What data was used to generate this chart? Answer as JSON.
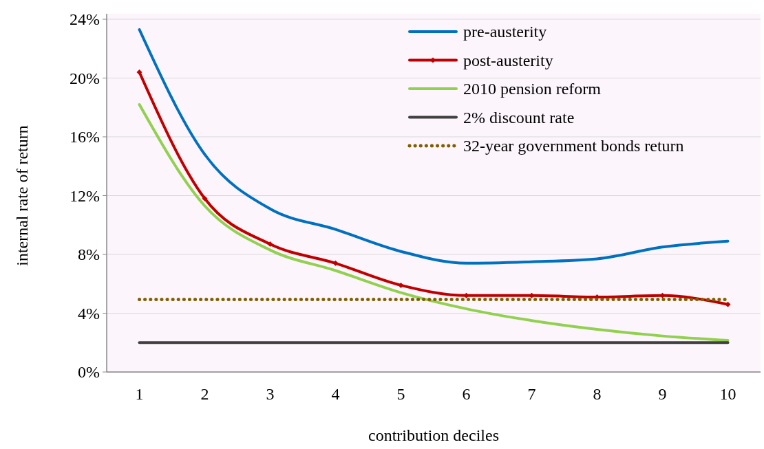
{
  "chart_data": {
    "type": "line",
    "xlabel": "contribution deciles",
    "ylabel": "internal rate of return",
    "categories": [
      "1",
      "2",
      "3",
      "4",
      "5",
      "6",
      "7",
      "8",
      "9",
      "10"
    ],
    "series": [
      {
        "name": "pre-austerity",
        "color": "#0070c0",
        "values": [
          23.3,
          14.8,
          11.1,
          9.7,
          8.2,
          7.4,
          7.5,
          7.7,
          8.5,
          8.9
        ]
      },
      {
        "name": "post-austerity",
        "color": "#c00000",
        "marker": "diamond",
        "values": [
          20.4,
          11.8,
          8.7,
          7.4,
          5.9,
          5.2,
          5.2,
          5.1,
          5.2,
          4.6
        ]
      },
      {
        "name": "2010 pension reform",
        "color": "#92d050",
        "values": [
          18.2,
          11.3,
          8.3,
          6.9,
          5.4,
          4.3,
          3.5,
          2.9,
          2.45,
          2.15
        ]
      },
      {
        "name": "2% discount rate",
        "color": "#404040",
        "values": [
          2,
          2,
          2,
          2,
          2,
          2,
          2,
          2,
          2,
          2
        ]
      },
      {
        "name": "32-year government bonds return",
        "color": "#7f6000",
        "line_style": "dotted",
        "values": [
          4.93,
          4.93,
          4.93,
          4.93,
          4.93,
          4.93,
          4.93,
          4.93,
          4.93,
          4.93
        ]
      }
    ],
    "ylim": [
      0,
      24
    ],
    "yticks": [
      {
        "value": 0,
        "label": "0%"
      },
      {
        "value": 4,
        "label": "4%"
      },
      {
        "value": 8,
        "label": "8%"
      },
      {
        "value": 12,
        "label": "12%"
      },
      {
        "value": 16,
        "label": "16%"
      },
      {
        "value": 20,
        "label": "20%"
      },
      {
        "value": 24,
        "label": "24%"
      }
    ],
    "grid": "y",
    "legend": "top right"
  }
}
